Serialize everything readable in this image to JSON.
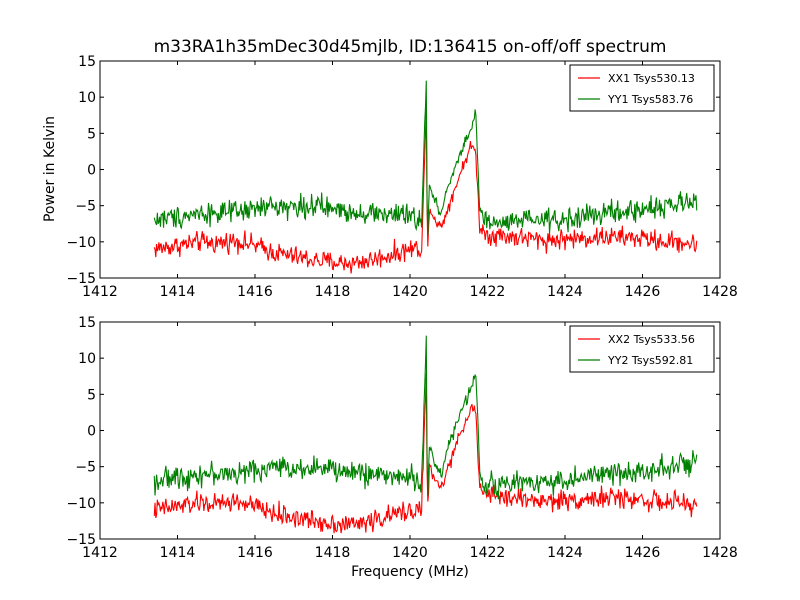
{
  "figure": {
    "title": "m33RA1h35mDec30d45mjlb, ID:136415 on-off/off spectrum",
    "ylabel": "Power in Kelvin",
    "xlabel": "Frequency (MHz)"
  },
  "chart_data": [
    {
      "type": "line",
      "title": "m33RA1h35mDec30d45mjlb, ID:136415 on-off/off spectrum",
      "xlabel": "",
      "ylabel": "Power in Kelvin",
      "xlim": [
        1412,
        1428
      ],
      "ylim": [
        -15,
        15
      ],
      "xticks": [
        1412,
        1414,
        1416,
        1418,
        1420,
        1422,
        1424,
        1426,
        1428
      ],
      "yticks": [
        -15,
        -10,
        -5,
        0,
        5,
        10,
        15
      ],
      "xticklabels": [
        "1412",
        "1414",
        "1416",
        "1418",
        "1420",
        "1422",
        "1424",
        "1426",
        "1428"
      ],
      "yticklabels": [
        "−15",
        "−10",
        "−5",
        "0",
        "5",
        "10",
        "15"
      ],
      "legend_position": "top-right",
      "grid": false,
      "series": [
        {
          "name": "XX1 Tsys530.13",
          "color": "#ff0000",
          "x": [
            1413.4,
            1414,
            1414.6,
            1415,
            1415.5,
            1416,
            1416.5,
            1417,
            1417.5,
            1418,
            1418.5,
            1419,
            1419.5,
            1420,
            1420.3,
            1420.42,
            1420.45,
            1420.5,
            1420.6,
            1420.8,
            1421.0,
            1421.2,
            1421.4,
            1421.6,
            1421.7,
            1421.8,
            1422,
            1422.5,
            1423,
            1423.5,
            1424,
            1424.5,
            1425,
            1425.5,
            1426,
            1426.5,
            1427,
            1427.4
          ],
          "y": [
            -11,
            -10.5,
            -10,
            -10.2,
            -9.8,
            -10.5,
            -11.5,
            -12,
            -12.5,
            -12.8,
            -13,
            -12.5,
            -11.8,
            -11,
            -10.8,
            8,
            -12,
            -5,
            -6.5,
            -8,
            -5,
            -2,
            1,
            3.5,
            2,
            -8,
            -9,
            -9.2,
            -9.5,
            -9.8,
            -9.6,
            -9.5,
            -9.3,
            -9.4,
            -9.5,
            -10,
            -10,
            -10.5
          ],
          "noise": 1.0
        },
        {
          "name": "YY1 Tsys583.76",
          "color": "#008000",
          "x": [
            1413.4,
            1414,
            1414.6,
            1415,
            1415.5,
            1416,
            1416.5,
            1417,
            1417.5,
            1418,
            1418.5,
            1419,
            1419.5,
            1420,
            1420.3,
            1420.42,
            1420.45,
            1420.5,
            1420.6,
            1420.8,
            1421.0,
            1421.2,
            1421.4,
            1421.6,
            1421.7,
            1421.8,
            1422,
            1422.5,
            1423,
            1423.5,
            1424,
            1424.5,
            1425,
            1425.5,
            1426,
            1426.5,
            1427,
            1427.4
          ],
          "y": [
            -7,
            -6.5,
            -6,
            -6,
            -6,
            -5.5,
            -5,
            -5.2,
            -5,
            -5.5,
            -5.8,
            -6,
            -6.2,
            -6.5,
            -7,
            12,
            -11,
            -2,
            -4,
            -6,
            -2,
            1,
            3.5,
            6,
            8,
            -6,
            -7.5,
            -7.5,
            -7,
            -7,
            -7,
            -6.5,
            -6,
            -6,
            -5.5,
            -5,
            -4.8,
            -4.5
          ],
          "noise": 1.1
        }
      ]
    },
    {
      "type": "line",
      "title": "",
      "xlabel": "Frequency (MHz)",
      "ylabel": "",
      "xlim": [
        1412,
        1428
      ],
      "ylim": [
        -15,
        15
      ],
      "xticks": [
        1412,
        1414,
        1416,
        1418,
        1420,
        1422,
        1424,
        1426,
        1428
      ],
      "yticks": [
        -15,
        -10,
        -5,
        0,
        5,
        10,
        15
      ],
      "xticklabels": [
        "1412",
        "1414",
        "1416",
        "1418",
        "1420",
        "1422",
        "1424",
        "1426",
        "1428"
      ],
      "yticklabels": [
        "−15",
        "−10",
        "−5",
        "0",
        "5",
        "10",
        "15"
      ],
      "legend_position": "top-right",
      "grid": false,
      "series": [
        {
          "name": "XX2 Tsys533.56",
          "color": "#ff0000",
          "x": [
            1413.4,
            1414,
            1414.6,
            1415,
            1415.5,
            1416,
            1416.5,
            1417,
            1417.5,
            1418,
            1418.5,
            1419,
            1419.5,
            1420,
            1420.3,
            1420.42,
            1420.45,
            1420.5,
            1420.6,
            1420.8,
            1421.0,
            1421.2,
            1421.4,
            1421.6,
            1421.7,
            1421.8,
            1422,
            1422.5,
            1423,
            1423.5,
            1424,
            1424.5,
            1425,
            1425.5,
            1426,
            1426.5,
            1427,
            1427.4
          ],
          "y": [
            -11,
            -10.5,
            -10,
            -10.2,
            -9.8,
            -10.5,
            -11.5,
            -12,
            -12.5,
            -12.8,
            -13,
            -12.5,
            -11.8,
            -11,
            -10.8,
            8,
            -12,
            -5,
            -6.5,
            -8,
            -5,
            -2,
            1,
            3.5,
            2,
            -8,
            -9,
            -9.2,
            -9.5,
            -9.8,
            -9.6,
            -9.5,
            -9.3,
            -9.4,
            -9.5,
            -10,
            -10,
            -10.5
          ],
          "noise": 1.0
        },
        {
          "name": "YY2 Tsys592.81",
          "color": "#008000",
          "x": [
            1413.4,
            1414,
            1414.6,
            1415,
            1415.5,
            1416,
            1416.5,
            1417,
            1417.5,
            1418,
            1418.5,
            1419,
            1419.5,
            1420,
            1420.3,
            1420.42,
            1420.45,
            1420.5,
            1420.6,
            1420.8,
            1421.0,
            1421.2,
            1421.4,
            1421.6,
            1421.7,
            1421.8,
            1422,
            1422.5,
            1423,
            1423.5,
            1424,
            1424.5,
            1425,
            1425.5,
            1426,
            1426.5,
            1427,
            1427.4
          ],
          "y": [
            -7,
            -6.5,
            -6,
            -6,
            -6,
            -5.5,
            -5,
            -5.2,
            -5,
            -5.5,
            -5.8,
            -6,
            -6.2,
            -6.5,
            -7,
            12.5,
            -11,
            -2,
            -4,
            -6,
            -2,
            1,
            3.5,
            6,
            8.5,
            -6,
            -7.5,
            -7.5,
            -7,
            -7,
            -7,
            -6.5,
            -6,
            -6,
            -5.5,
            -5,
            -4.8,
            -4.5
          ],
          "noise": 1.1
        }
      ]
    }
  ]
}
